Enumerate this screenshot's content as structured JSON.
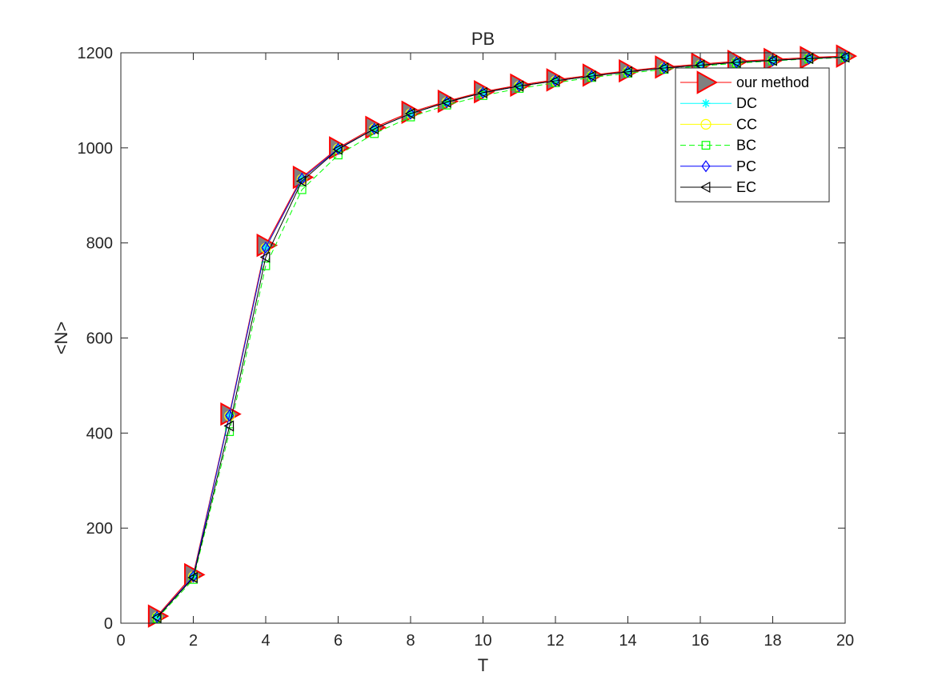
{
  "chart_data": {
    "type": "line",
    "title": "PB",
    "xlabel": "T",
    "ylabel": "<N>",
    "xlim": [
      0,
      20
    ],
    "ylim": [
      0,
      1200
    ],
    "xticks": [
      0,
      2,
      4,
      6,
      8,
      10,
      12,
      14,
      16,
      18,
      20
    ],
    "yticks": [
      0,
      200,
      400,
      600,
      800,
      1000,
      1200
    ],
    "grid": false,
    "legend_position": "top-right",
    "x": [
      1,
      2,
      3,
      4,
      5,
      6,
      7,
      8,
      9,
      10,
      11,
      12,
      13,
      14,
      15,
      16,
      17,
      18,
      19,
      20
    ],
    "series": [
      {
        "name": "our method",
        "color": "#ff0000",
        "fill": "#808080",
        "marker": "triangle-right",
        "dash": "solid",
        "values": [
          15,
          102,
          440,
          795,
          938,
          1000,
          1043,
          1075,
          1098,
          1118,
          1132,
          1143,
          1153,
          1162,
          1170,
          1176,
          1182,
          1186,
          1190,
          1193
        ]
      },
      {
        "name": "DC",
        "color": "#00ffff",
        "marker": "asterisk",
        "dash": "solid",
        "values": [
          13,
          98,
          437,
          790,
          935,
          998,
          1040,
          1072,
          1096,
          1116,
          1130,
          1141,
          1151,
          1160,
          1168,
          1174,
          1180,
          1184,
          1188,
          1191
        ]
      },
      {
        "name": "CC",
        "color": "#ffff00",
        "marker": "circle",
        "dash": "solid",
        "values": [
          13,
          98,
          436,
          789,
          934,
          998,
          1040,
          1072,
          1096,
          1116,
          1130,
          1141,
          1151,
          1160,
          1168,
          1174,
          1180,
          1184,
          1188,
          1191
        ]
      },
      {
        "name": "BC",
        "color": "#00ff00",
        "marker": "square",
        "dash": "dashed",
        "values": [
          10,
          92,
          403,
          752,
          912,
          985,
          1030,
          1065,
          1090,
          1110,
          1125,
          1137,
          1148,
          1157,
          1165,
          1172,
          1178,
          1183,
          1187,
          1190
        ]
      },
      {
        "name": "PC",
        "color": "#0000ff",
        "marker": "diamond",
        "dash": "solid",
        "values": [
          13,
          98,
          437,
          790,
          935,
          998,
          1040,
          1072,
          1096,
          1116,
          1130,
          1141,
          1151,
          1160,
          1168,
          1174,
          1180,
          1184,
          1188,
          1191
        ]
      },
      {
        "name": "EC",
        "color": "#000000",
        "marker": "triangle-left",
        "dash": "solid",
        "values": [
          12,
          96,
          415,
          770,
          930,
          997,
          1040,
          1072,
          1096,
          1116,
          1130,
          1141,
          1151,
          1160,
          1168,
          1174,
          1180,
          1184,
          1188,
          1191
        ]
      }
    ]
  }
}
